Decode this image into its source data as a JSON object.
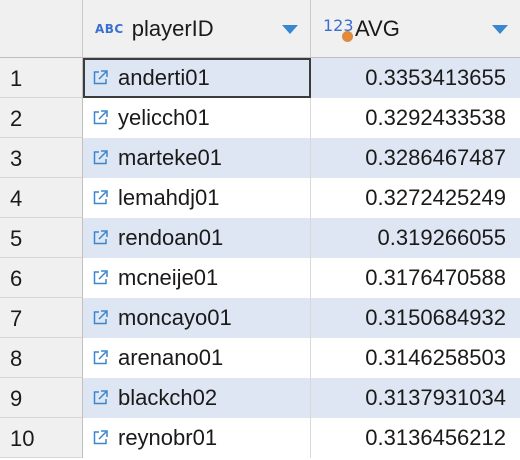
{
  "columns": [
    {
      "type_icon": "ABC",
      "label": "playerID"
    },
    {
      "type_icon": "123",
      "label": "AVG"
    }
  ],
  "icons": {
    "link": "external-link-icon",
    "sort": "chevron-down-icon",
    "numeric_type": "numeric-type-icon",
    "text_type": "text-type-icon"
  },
  "colors": {
    "accent": "#3a86d0",
    "stripe": "#dde6f2",
    "header_bg": "#f0f0f0"
  },
  "rows": [
    {
      "num": "1",
      "playerID": "anderti01",
      "avg": "0.3353413655",
      "selected": true
    },
    {
      "num": "2",
      "playerID": "yelicch01",
      "avg": "0.3292433538"
    },
    {
      "num": "3",
      "playerID": "marteke01",
      "avg": "0.3286467487"
    },
    {
      "num": "4",
      "playerID": "lemahdj01",
      "avg": "0.3272425249"
    },
    {
      "num": "5",
      "playerID": "rendoan01",
      "avg": "0.319266055"
    },
    {
      "num": "6",
      "playerID": "mcneije01",
      "avg": "0.3176470588"
    },
    {
      "num": "7",
      "playerID": "moncayo01",
      "avg": "0.3150684932"
    },
    {
      "num": "8",
      "playerID": "arenano01",
      "avg": "0.3146258503"
    },
    {
      "num": "9",
      "playerID": "blackch02",
      "avg": "0.3137931034"
    },
    {
      "num": "10",
      "playerID": "reynobr01",
      "avg": "0.3136456212"
    }
  ]
}
